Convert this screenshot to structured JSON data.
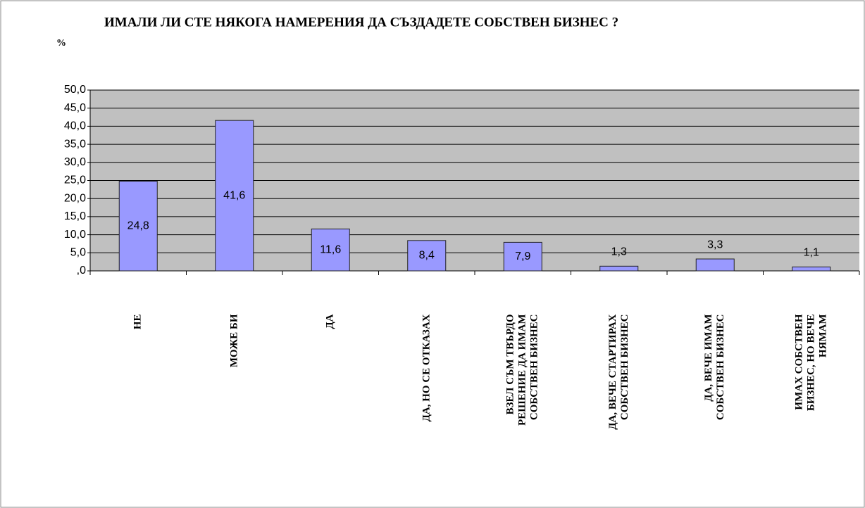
{
  "chart_data": {
    "type": "bar",
    "title": "ИМАЛИ ЛИ СТЕ НЯКОГА НАМЕРЕНИЯ ДА СЪЗДАДЕТЕ СОБСТВЕН БИЗНЕС ?",
    "y_label": "%",
    "categories": [
      "НЕ",
      "МОЖЕ БИ",
      "ДА",
      "ДА, НО СЕ ОТКАЗАХ",
      "ВЗЕЛ СЪМ ТВЪРДО РЕШЕНИЕ ДА ИМАМ СОБСТВЕН БИЗНЕС",
      "ДА, ВЕЧЕ СТАРТИРАХ СОБСТВЕН БИЗНЕС",
      "ДА, ВЕЧЕ ИМАМ СОБСТВЕН БИЗНЕС",
      "ИМАХ СОБСТВЕН БИЗНЕС, НО ВЕЧЕ НЯМАМ"
    ],
    "values": [
      24.8,
      41.6,
      11.6,
      8.4,
      7.9,
      1.3,
      3.3,
      1.1
    ],
    "value_labels": [
      "24,8",
      "41,6",
      "11,6",
      "8,4",
      "7,9",
      "1,3",
      "3,3",
      "1,1"
    ],
    "color": "#9999ff",
    "ylim": [
      0,
      50
    ],
    "yticks": [
      {
        "value": 0,
        "label": ",0"
      },
      {
        "value": 5,
        "label": "5,0"
      },
      {
        "value": 10,
        "label": "10,0"
      },
      {
        "value": 15,
        "label": "15,0"
      },
      {
        "value": 20,
        "label": "20,0"
      },
      {
        "value": 25,
        "label": "25,0"
      },
      {
        "value": 30,
        "label": "30,0"
      },
      {
        "value": 35,
        "label": "35,0"
      },
      {
        "value": 40,
        "label": "40,0"
      },
      {
        "value": 45,
        "label": "45,0"
      },
      {
        "value": 50,
        "label": "50,0"
      }
    ],
    "grid": true
  }
}
